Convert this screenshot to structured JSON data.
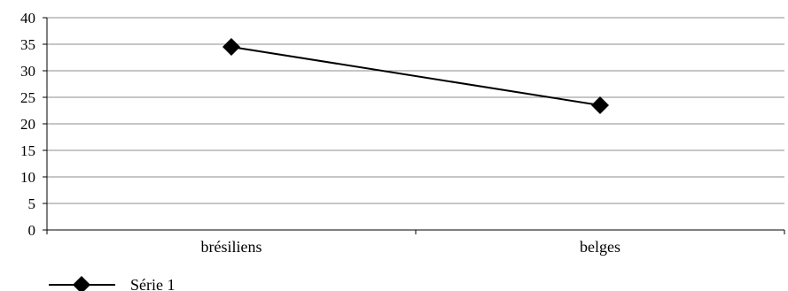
{
  "chart_data": {
    "type": "line",
    "categories": [
      "brésiliens",
      "belges"
    ],
    "series": [
      {
        "name": "Série 1",
        "values": [
          34.5,
          23.5
        ],
        "marker": "diamond",
        "color": "#000000"
      }
    ],
    "ylim": [
      0,
      40
    ],
    "yticks": [
      0,
      5,
      10,
      15,
      20,
      25,
      30,
      35,
      40
    ],
    "grid": true,
    "legend": "bottom-left",
    "title": "",
    "xlabel": "",
    "ylabel": ""
  }
}
